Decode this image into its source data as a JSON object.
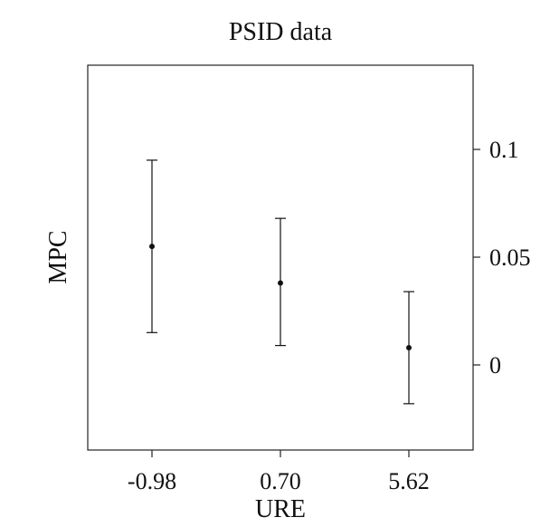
{
  "chart_data": {
    "type": "errorbar",
    "title": "PSID data",
    "xlabel": "URE",
    "ylabel": "MPC",
    "categories": [
      "-0.98",
      "0.70",
      "5.62"
    ],
    "points": [
      {
        "x": "-0.98",
        "y": 0.055,
        "lower": 0.015,
        "upper": 0.095
      },
      {
        "x": "0.70",
        "y": 0.038,
        "lower": 0.009,
        "upper": 0.068
      },
      {
        "x": "5.62",
        "y": 0.008,
        "lower": -0.018,
        "upper": 0.034
      }
    ],
    "yticks": [
      0,
      0.05,
      0.1
    ],
    "ytick_labels": [
      "0",
      "0.05",
      "0.1"
    ],
    "ylim": [
      -0.04,
      0.14
    ],
    "y_axis_side": "right",
    "grid": false,
    "colors": {
      "marks": "#111111",
      "frame": "#222222"
    }
  }
}
